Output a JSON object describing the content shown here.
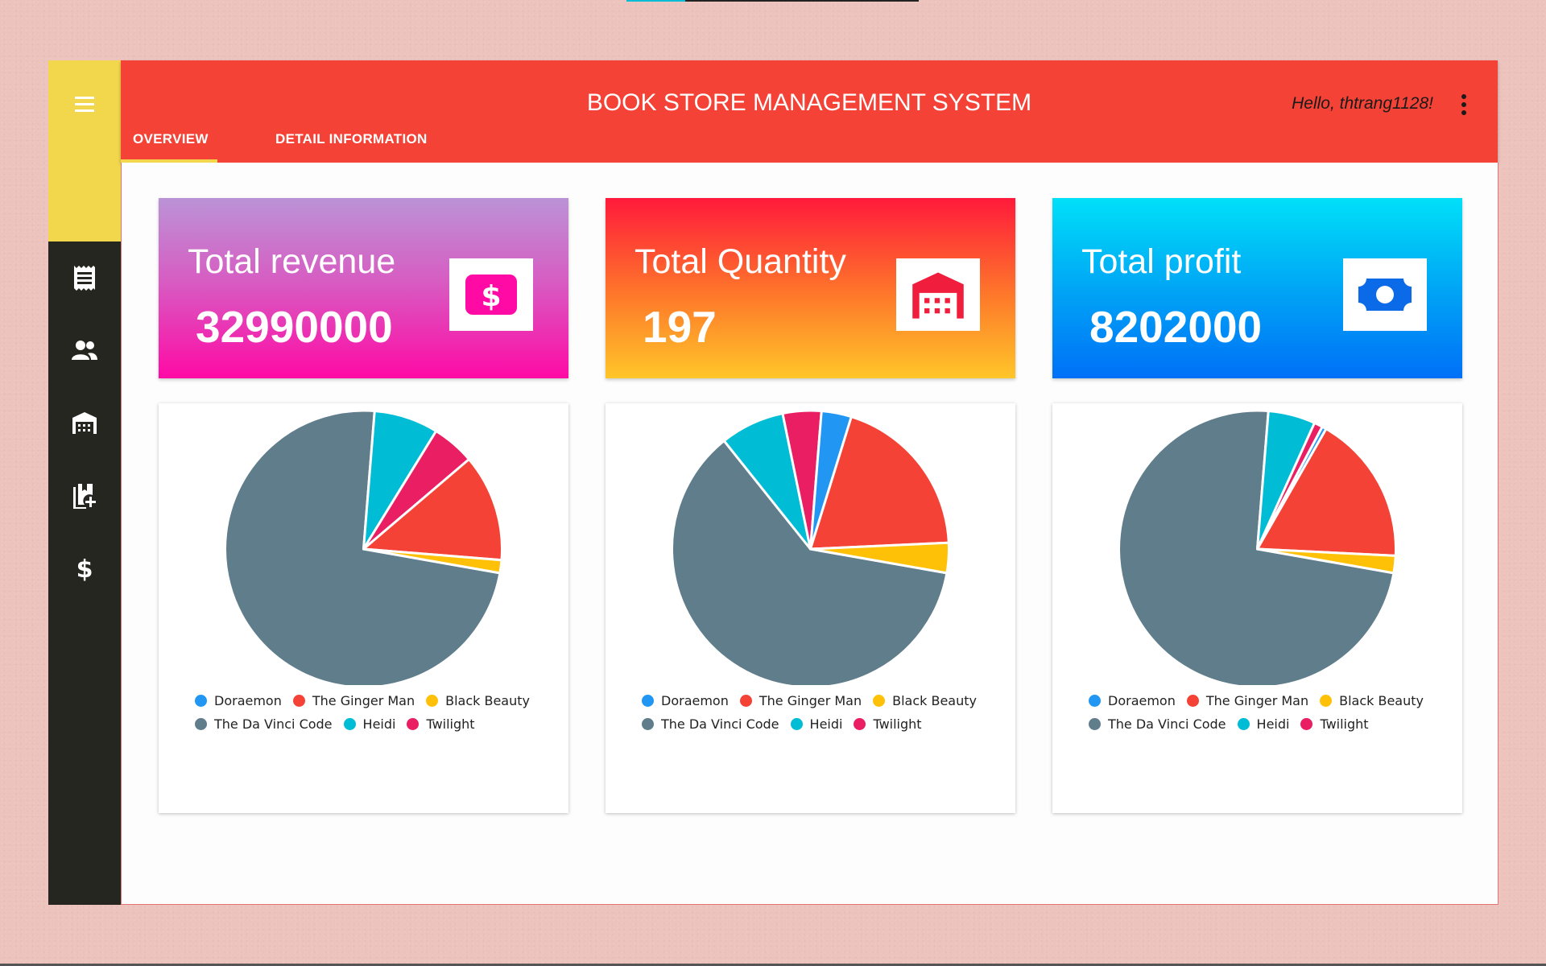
{
  "app": {
    "title": "BOOK STORE MANAGEMENT SYSTEM",
    "greeting": "Hello, thtrang1128!"
  },
  "tabs": [
    {
      "label": "OVERVIEW",
      "active": true
    },
    {
      "label": "DETAIL INFORMATION",
      "active": false
    }
  ],
  "sidebar": {
    "items": [
      {
        "icon": "receipt-icon"
      },
      {
        "icon": "people-icon"
      },
      {
        "icon": "warehouse-icon"
      },
      {
        "icon": "add-book-icon"
      },
      {
        "icon": "dollar-icon"
      }
    ]
  },
  "cards": [
    {
      "label": "Total revenue",
      "value": "32990000",
      "icon": "dollar-bill-icon"
    },
    {
      "label": "Total Quantity",
      "value": "197",
      "icon": "warehouse-icon"
    },
    {
      "label": "Total profit",
      "value": "8202000",
      "icon": "banknote-icon"
    }
  ],
  "colors": {
    "Doraemon": "#2196f3",
    "The Ginger Man": "#f44336",
    "Black Beauty": "#ffc107",
    "The Da Vinci Code": "#607d8b",
    "Heidi": "#00bcd4",
    "Twilight": "#e91e63",
    "header": "#f44336",
    "sidebar_top": "#f2d64c",
    "sidebar": "#262620"
  },
  "chart_data": [
    {
      "type": "pie",
      "title": "Total revenue",
      "categories": [
        "Doraemon",
        "The Ginger Man",
        "Black Beauty",
        "The Da Vinci Code",
        "Heidi",
        "Twilight"
      ],
      "values": [
        0,
        12.5,
        1.5,
        73.5,
        7.5,
        5.0
      ],
      "legend": "bottom"
    },
    {
      "type": "pie",
      "title": "Total Quantity",
      "categories": [
        "Doraemon",
        "The Ginger Man",
        "Black Beauty",
        "The Da Vinci Code",
        "Heidi",
        "Twilight"
      ],
      "values": [
        3.5,
        19.5,
        3.5,
        61.5,
        7.5,
        4.5
      ],
      "legend": "bottom"
    },
    {
      "type": "pie",
      "title": "Total profit",
      "categories": [
        "Doraemon",
        "The Ginger Man",
        "Black Beauty",
        "The Da Vinci Code",
        "Heidi",
        "Twilight"
      ],
      "values": [
        0.5,
        17.5,
        2.0,
        73.5,
        5.5,
        1.0
      ],
      "legend": "bottom"
    }
  ]
}
